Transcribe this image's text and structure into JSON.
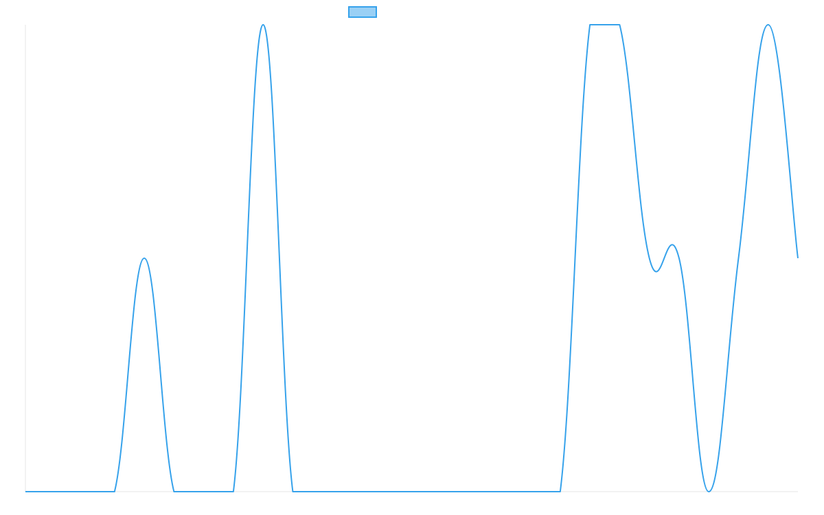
{
  "chart_data": {
    "type": "line",
    "title": "",
    "xlabel": "",
    "ylabel": "",
    "legend_position": "top-center",
    "grid": false,
    "ylim": [
      0,
      2
    ],
    "x": [
      0,
      1,
      2,
      3,
      4,
      5,
      6,
      7,
      8,
      9,
      10,
      11,
      12,
      13,
      14,
      15,
      16,
      17,
      18,
      19,
      20,
      21,
      22,
      23,
      24,
      25,
      26
    ],
    "series": [
      {
        "name": "",
        "color": "#36a2eb",
        "fill": "#9ad0f5",
        "tension": 0.4,
        "values": [
          0,
          0,
          0,
          0,
          1,
          0,
          0,
          0,
          2,
          0,
          0,
          0,
          0,
          0,
          0,
          0,
          0,
          0,
          0,
          2,
          2,
          1,
          1,
          0,
          1,
          2,
          1
        ]
      }
    ]
  }
}
